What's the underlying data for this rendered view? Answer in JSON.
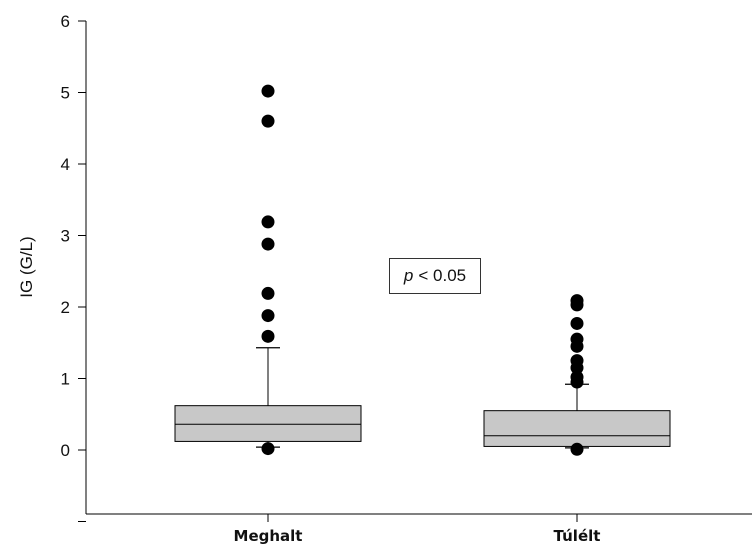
{
  "chart_data": {
    "type": "box",
    "ylabel": "IG (G/L)",
    "xlabel": "",
    "ylim": [
      -1,
      6
    ],
    "yticks": [
      0,
      1,
      2,
      3,
      4,
      5,
      6
    ],
    "annotation": {
      "variable": "p",
      "text": "< 0.05"
    },
    "colors": {
      "box_fill": "#c8c8c8",
      "stroke": "#000000",
      "outlier": "#000000"
    },
    "categories": [
      "Meghalt",
      "Túlélt"
    ],
    "boxes": [
      {
        "category": "Meghalt",
        "whisker_low": 0.04,
        "q1": 0.12,
        "median": 0.36,
        "q3": 0.62,
        "whisker_high": 1.43,
        "outliers": [
          0.02,
          1.59,
          1.88,
          2.19,
          2.88,
          3.19,
          4.6,
          5.02
        ]
      },
      {
        "category": "Túlélt",
        "whisker_low": 0.03,
        "q1": 0.05,
        "median": 0.2,
        "q3": 0.55,
        "whisker_high": 0.92,
        "outliers": [
          0.01,
          0.95,
          1.02,
          1.15,
          1.25,
          1.45,
          1.55,
          1.77,
          2.03,
          2.09
        ]
      }
    ]
  }
}
